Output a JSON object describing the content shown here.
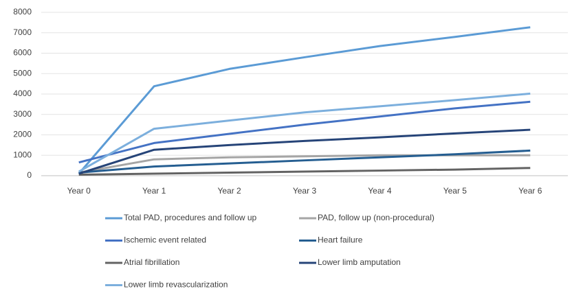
{
  "chart_data": {
    "type": "line",
    "categories": [
      "Year 0",
      "Year 1",
      "Year 2",
      "Year 3",
      "Year 4",
      "Year 5",
      "Year 6"
    ],
    "series": [
      {
        "name": "Total PAD, procedures and follow up",
        "color": "#5b9bd5",
        "values": [
          100,
          4380,
          5230,
          5800,
          6350,
          6800,
          7270
        ]
      },
      {
        "name": "PAD,  follow up (non-procedural)",
        "color": "#a5a5a5",
        "values": [
          150,
          800,
          900,
          950,
          1000,
          1000,
          1000
        ]
      },
      {
        "name": "Ischemic event related",
        "color": "#4472c4",
        "values": [
          650,
          1600,
          2050,
          2500,
          2900,
          3300,
          3620
        ]
      },
      {
        "name": "Heart failure",
        "color": "#255e91",
        "values": [
          150,
          450,
          600,
          750,
          900,
          1050,
          1230
        ]
      },
      {
        "name": "Atrial fibrillation",
        "color": "#636363",
        "values": [
          50,
          100,
          150,
          200,
          250,
          300,
          380
        ]
      },
      {
        "name": "Lower limb amputation",
        "color": "#264478",
        "values": [
          100,
          1270,
          1500,
          1700,
          1880,
          2070,
          2250
        ]
      },
      {
        "name": "Lower limb revascularization",
        "color": "#7cafdd",
        "values": [
          200,
          2300,
          2700,
          3100,
          3400,
          3700,
          4020
        ]
      }
    ],
    "ylim": [
      0,
      8000
    ],
    "yticks": [
      0,
      1000,
      2000,
      3000,
      4000,
      5000,
      6000,
      7000,
      8000
    ],
    "grid": true
  }
}
